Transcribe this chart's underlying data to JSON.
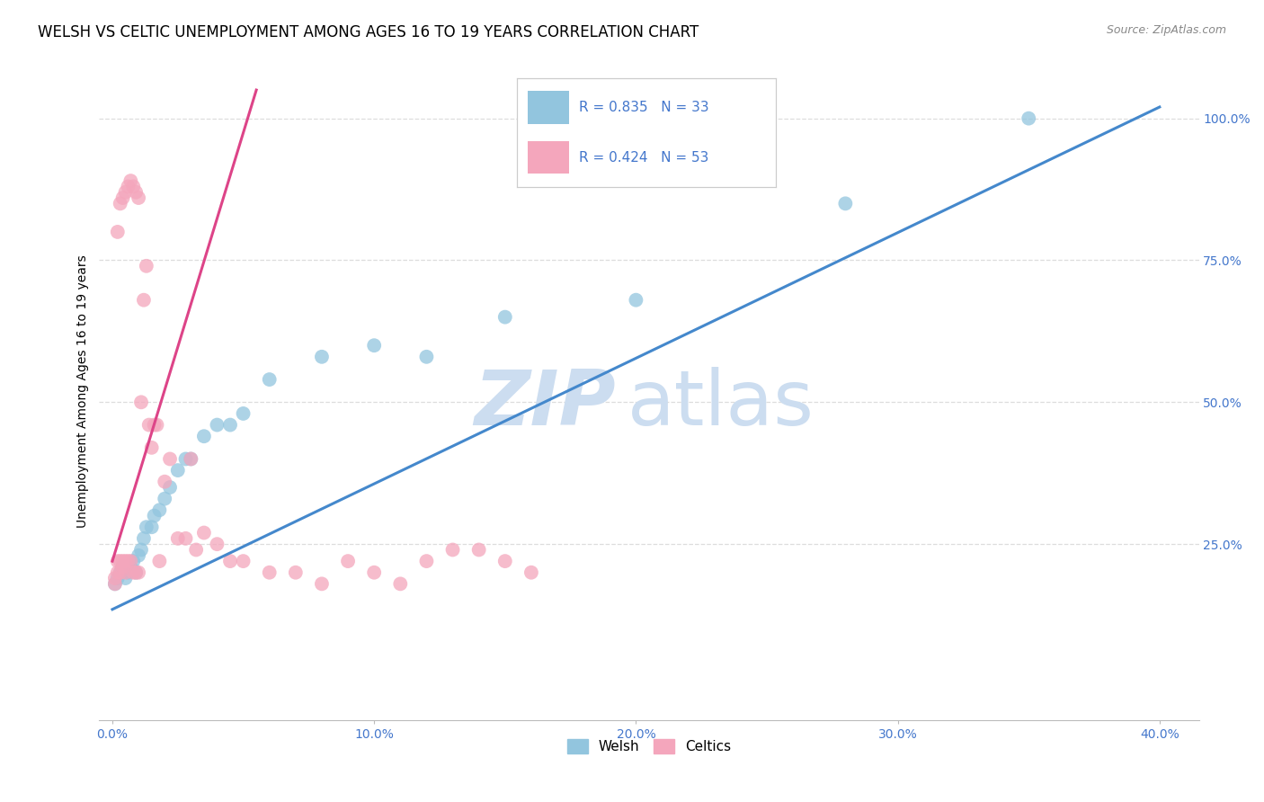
{
  "title": "WELSH VS CELTIC UNEMPLOYMENT AMONG AGES 16 TO 19 YEARS CORRELATION CHART",
  "source": "Source: ZipAtlas.com",
  "ylabel_label": "Unemployment Among Ages 16 to 19 years",
  "x_tick_labels": [
    "0.0%",
    "10.0%",
    "20.0%",
    "30.0%",
    "40.0%"
  ],
  "x_tick_positions": [
    0.0,
    0.1,
    0.2,
    0.3,
    0.4
  ],
  "y_tick_labels": [
    "100.0%",
    "75.0%",
    "50.0%",
    "25.0%"
  ],
  "y_tick_positions": [
    1.0,
    0.75,
    0.5,
    0.25
  ],
  "xlim": [
    -0.005,
    0.415
  ],
  "ylim": [
    -0.06,
    1.1
  ],
  "welsh_R": 0.835,
  "welsh_N": 33,
  "celtics_R": 0.424,
  "celtics_N": 53,
  "welsh_color": "#92c5de",
  "celtics_color": "#f4a6bc",
  "welsh_line_color": "#4488cc",
  "celtics_line_color": "#dd4488",
  "legend_label_welsh": "Welsh",
  "legend_label_celtics": "Celtics",
  "watermark_zip": "ZIP",
  "watermark_atlas": "atlas",
  "watermark_color": "#ccddf0",
  "background_color": "#ffffff",
  "grid_color": "#dddddd",
  "title_fontsize": 12,
  "axis_label_fontsize": 10,
  "tick_fontsize": 10,
  "tick_color": "#4477cc",
  "welsh_line_x0": 0.0,
  "welsh_line_y0": 0.135,
  "welsh_line_x1": 0.4,
  "welsh_line_y1": 1.02,
  "celtics_line_x0": 0.0,
  "celtics_line_y0": 0.22,
  "celtics_line_x1": 0.055,
  "celtics_line_y1": 1.05,
  "welsh_x": [
    0.001,
    0.002,
    0.003,
    0.004,
    0.005,
    0.006,
    0.007,
    0.008,
    0.009,
    0.01,
    0.011,
    0.012,
    0.013,
    0.015,
    0.016,
    0.018,
    0.02,
    0.022,
    0.025,
    0.028,
    0.03,
    0.035,
    0.04,
    0.045,
    0.05,
    0.06,
    0.08,
    0.1,
    0.12,
    0.15,
    0.2,
    0.28,
    0.35
  ],
  "welsh_y": [
    0.18,
    0.19,
    0.2,
    0.21,
    0.19,
    0.2,
    0.21,
    0.22,
    0.2,
    0.23,
    0.24,
    0.26,
    0.28,
    0.28,
    0.3,
    0.31,
    0.33,
    0.35,
    0.38,
    0.4,
    0.4,
    0.44,
    0.46,
    0.46,
    0.48,
    0.54,
    0.58,
    0.6,
    0.58,
    0.65,
    0.68,
    0.85,
    1.0
  ],
  "celtics_x": [
    0.001,
    0.001,
    0.002,
    0.002,
    0.002,
    0.003,
    0.003,
    0.003,
    0.004,
    0.004,
    0.004,
    0.005,
    0.005,
    0.005,
    0.006,
    0.006,
    0.007,
    0.007,
    0.008,
    0.008,
    0.009,
    0.009,
    0.01,
    0.01,
    0.011,
    0.012,
    0.013,
    0.014,
    0.015,
    0.016,
    0.017,
    0.018,
    0.02,
    0.022,
    0.025,
    0.028,
    0.03,
    0.032,
    0.035,
    0.04,
    0.045,
    0.05,
    0.06,
    0.07,
    0.08,
    0.09,
    0.1,
    0.11,
    0.12,
    0.13,
    0.14,
    0.15,
    0.16
  ],
  "celtics_y": [
    0.18,
    0.19,
    0.2,
    0.22,
    0.8,
    0.2,
    0.22,
    0.85,
    0.21,
    0.22,
    0.86,
    0.2,
    0.22,
    0.87,
    0.22,
    0.88,
    0.22,
    0.89,
    0.2,
    0.88,
    0.2,
    0.87,
    0.2,
    0.86,
    0.5,
    0.68,
    0.74,
    0.46,
    0.42,
    0.46,
    0.46,
    0.22,
    0.36,
    0.4,
    0.26,
    0.26,
    0.4,
    0.24,
    0.27,
    0.25,
    0.22,
    0.22,
    0.2,
    0.2,
    0.18,
    0.22,
    0.2,
    0.18,
    0.22,
    0.24,
    0.24,
    0.22,
    0.2
  ]
}
